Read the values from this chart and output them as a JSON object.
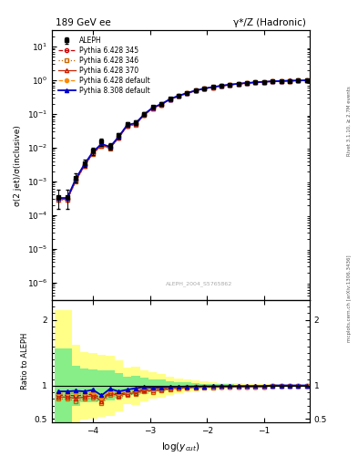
{
  "title_left": "189 GeV ee",
  "title_right": "γ*/Z (Hadronic)",
  "ylabel_main": "σ(2 jet)/σ(inclusive)",
  "ylabel_ratio": "Ratio to ALEPH",
  "xlabel": "log(y_{cut})",
  "watermark": "ALEPH_2004_S5765862",
  "right_label": "Rivet 3.1.10, ≥ 2.7M events",
  "arxiv_label": "mcplots.cern.ch [arXiv:1306.3436]",
  "xlim": [
    -4.72,
    -0.2
  ],
  "ylim_main": [
    3e-07,
    30
  ],
  "ylim_ratio": [
    0.44,
    2.3
  ],
  "x_data": [
    -4.6,
    -4.45,
    -4.3,
    -4.15,
    -4.0,
    -3.85,
    -3.7,
    -3.55,
    -3.4,
    -3.25,
    -3.1,
    -2.95,
    -2.8,
    -2.65,
    -2.5,
    -2.35,
    -2.2,
    -2.05,
    -1.9,
    -1.75,
    -1.6,
    -1.45,
    -1.3,
    -1.15,
    -1.0,
    -0.85,
    -0.7,
    -0.55,
    -0.4,
    -0.25
  ],
  "aleph_y": [
    0.00035,
    0.00035,
    0.0013,
    0.0035,
    0.008,
    0.015,
    0.011,
    0.023,
    0.05,
    0.055,
    0.1,
    0.16,
    0.2,
    0.28,
    0.35,
    0.42,
    0.5,
    0.57,
    0.63,
    0.69,
    0.74,
    0.79,
    0.83,
    0.87,
    0.9,
    0.92,
    0.94,
    0.96,
    0.97,
    0.985
  ],
  "aleph_yerr": [
    0.0002,
    0.0002,
    0.0004,
    0.0009,
    0.002,
    0.0035,
    0.0025,
    0.0045,
    0.007,
    0.008,
    0.012,
    0.016,
    0.018,
    0.02,
    0.02,
    0.02,
    0.02,
    0.018,
    0.018,
    0.016,
    0.015,
    0.014,
    0.013,
    0.012,
    0.01,
    0.009,
    0.008,
    0.007,
    0.006,
    0.005
  ],
  "p345_y": [
    0.0003,
    0.0003,
    0.0011,
    0.003,
    0.007,
    0.012,
    0.01,
    0.02,
    0.045,
    0.05,
    0.095,
    0.15,
    0.19,
    0.27,
    0.34,
    0.41,
    0.49,
    0.56,
    0.62,
    0.68,
    0.73,
    0.78,
    0.82,
    0.86,
    0.89,
    0.92,
    0.94,
    0.96,
    0.97,
    0.985
  ],
  "p346_y": [
    0.00028,
    0.00028,
    0.001,
    0.0028,
    0.0065,
    0.011,
    0.0095,
    0.019,
    0.043,
    0.048,
    0.092,
    0.145,
    0.185,
    0.265,
    0.335,
    0.405,
    0.485,
    0.555,
    0.615,
    0.675,
    0.725,
    0.775,
    0.815,
    0.856,
    0.886,
    0.916,
    0.936,
    0.956,
    0.966,
    0.981
  ],
  "p370_y": [
    0.00029,
    0.00029,
    0.00105,
    0.0029,
    0.0068,
    0.0115,
    0.0098,
    0.0195,
    0.044,
    0.049,
    0.093,
    0.148,
    0.188,
    0.268,
    0.338,
    0.408,
    0.488,
    0.558,
    0.618,
    0.678,
    0.728,
    0.778,
    0.818,
    0.858,
    0.888,
    0.918,
    0.938,
    0.958,
    0.968,
    0.983
  ],
  "pdef_y": [
    0.00031,
    0.00031,
    0.00115,
    0.0031,
    0.0072,
    0.0122,
    0.0102,
    0.0205,
    0.046,
    0.052,
    0.097,
    0.152,
    0.192,
    0.272,
    0.342,
    0.412,
    0.492,
    0.562,
    0.622,
    0.682,
    0.732,
    0.782,
    0.822,
    0.862,
    0.892,
    0.922,
    0.942,
    0.962,
    0.972,
    0.987
  ],
  "p8def_y": [
    0.00032,
    0.00032,
    0.0012,
    0.0032,
    0.0075,
    0.0128,
    0.0105,
    0.021,
    0.047,
    0.053,
    0.098,
    0.155,
    0.195,
    0.275,
    0.345,
    0.415,
    0.495,
    0.565,
    0.625,
    0.685,
    0.735,
    0.785,
    0.825,
    0.865,
    0.895,
    0.925,
    0.945,
    0.965,
    0.975,
    0.99
  ],
  "color_345": "#cc0000",
  "color_346": "#cc6600",
  "color_370": "#cc2200",
  "color_def": "#ff8800",
  "color_p8": "#0000cc"
}
